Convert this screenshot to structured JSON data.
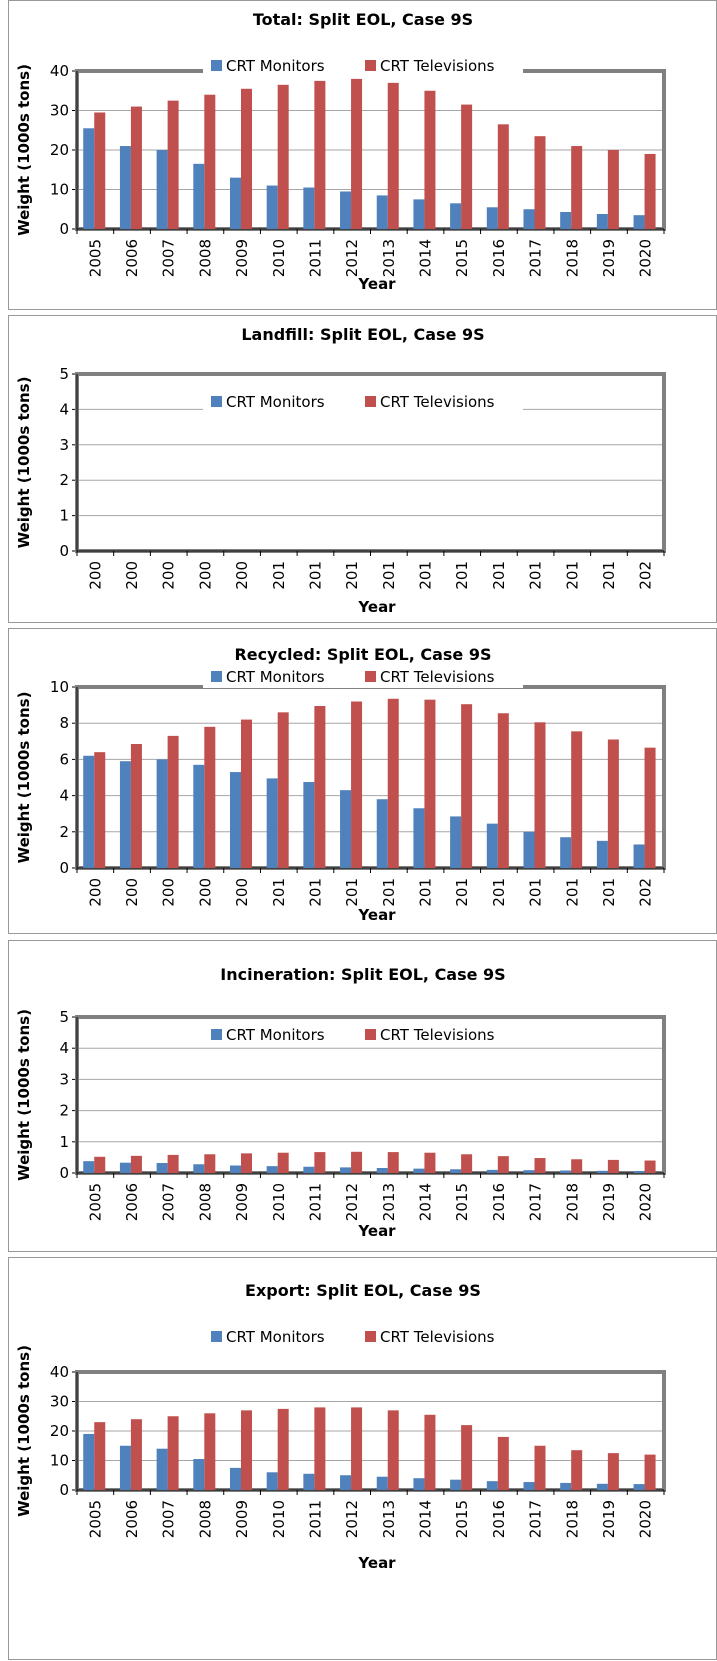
{
  "colors": {
    "monitors": "#4F81BD",
    "televisions": "#C0504D",
    "frame": "#808080",
    "grid": "#A6A6A6"
  },
  "chart_data": [
    {
      "type": "bar",
      "title": "Total:  Split EOL, Case 9S",
      "xlabel": "Year",
      "ylabel": "Weight (1000s tons)",
      "ylim": [
        0,
        40
      ],
      "yticks": [
        "0",
        "10",
        "20",
        "30",
        "40"
      ],
      "categories": [
        "2005",
        "2006",
        "2007",
        "2008",
        "2009",
        "2010",
        "2011",
        "2012",
        "2013",
        "2014",
        "2015",
        "2016",
        "2017",
        "2018",
        "2019",
        "2020"
      ],
      "series": [
        {
          "name": "CRT Monitors",
          "values": [
            25.5,
            21,
            20,
            16.5,
            13,
            11,
            10.5,
            9.5,
            8.5,
            7.5,
            6.5,
            5.5,
            5,
            4.3,
            3.8,
            3.5
          ]
        },
        {
          "name": "CRT Televisions",
          "values": [
            29.5,
            31,
            32.5,
            34,
            35.5,
            36.5,
            37.5,
            38,
            37,
            35,
            31.5,
            26.5,
            23.5,
            21,
            20,
            19
          ]
        }
      ],
      "legend_position": "top-center",
      "grid": true
    },
    {
      "type": "bar",
      "title": "Landfill:  Split EOL, Case 9S",
      "xlabel": "Year",
      "ylabel": "Weight (1000s tons)",
      "ylim": [
        0,
        5
      ],
      "yticks": [
        "0",
        "1",
        "2",
        "3",
        "4",
        "5"
      ],
      "categories": [
        "200",
        "200",
        "200",
        "200",
        "200",
        "201",
        "201",
        "201",
        "201",
        "201",
        "201",
        "201",
        "201",
        "201",
        "201",
        "202"
      ],
      "series": [
        {
          "name": "CRT Monitors",
          "values": [
            0,
            0,
            0,
            0,
            0,
            0,
            0,
            0,
            0,
            0,
            0,
            0,
            0,
            0,
            0,
            0
          ]
        },
        {
          "name": "CRT Televisions",
          "values": [
            0,
            0,
            0,
            0,
            0,
            0,
            0,
            0,
            0,
            0,
            0,
            0,
            0,
            0,
            0,
            0
          ]
        }
      ],
      "legend_position": "top-center",
      "grid": true
    },
    {
      "type": "bar",
      "title": "Recycled:  Split EOL, Case 9S",
      "xlabel": "Year",
      "ylabel": "Weight (1000s tons)",
      "ylim": [
        0,
        10
      ],
      "yticks": [
        "0",
        "2",
        "4",
        "6",
        "8",
        "10"
      ],
      "categories": [
        "200",
        "200",
        "200",
        "200",
        "200",
        "201",
        "201",
        "201",
        "201",
        "201",
        "201",
        "201",
        "201",
        "201",
        "201",
        "202"
      ],
      "series": [
        {
          "name": "CRT Monitors",
          "values": [
            6.2,
            5.9,
            6.0,
            5.7,
            5.3,
            4.95,
            4.75,
            4.3,
            3.8,
            3.3,
            2.85,
            2.45,
            2.0,
            1.7,
            1.5,
            1.3
          ]
        },
        {
          "name": "CRT Televisions",
          "values": [
            6.4,
            6.85,
            7.3,
            7.8,
            8.2,
            8.6,
            8.95,
            9.2,
            9.35,
            9.3,
            9.05,
            8.55,
            8.05,
            7.55,
            7.1,
            6.65
          ]
        }
      ],
      "legend_position": "top-center",
      "grid": true
    },
    {
      "type": "bar",
      "title": "Incineration:  Split EOL, Case 9S",
      "xlabel": "Year",
      "ylabel": "Weight (1000s tons)",
      "ylim": [
        0,
        5
      ],
      "yticks": [
        "0",
        "1",
        "2",
        "3",
        "4",
        "5"
      ],
      "categories": [
        "2005",
        "2006",
        "2007",
        "2008",
        "2009",
        "2010",
        "2011",
        "2012",
        "2013",
        "2014",
        "2015",
        "2016",
        "2017",
        "2018",
        "2019",
        "2020"
      ],
      "series": [
        {
          "name": "CRT Monitors",
          "values": [
            0.38,
            0.33,
            0.32,
            0.28,
            0.24,
            0.22,
            0.2,
            0.18,
            0.16,
            0.14,
            0.12,
            0.1,
            0.09,
            0.08,
            0.07,
            0.06
          ]
        },
        {
          "name": "CRT Televisions",
          "values": [
            0.52,
            0.55,
            0.58,
            0.6,
            0.63,
            0.65,
            0.67,
            0.68,
            0.67,
            0.65,
            0.6,
            0.54,
            0.48,
            0.44,
            0.42,
            0.4
          ]
        }
      ],
      "legend_position": "top-center",
      "grid": true
    },
    {
      "type": "bar",
      "title": "Export:  Split EOL, Case 9S",
      "xlabel": "Year",
      "ylabel": "Weight (1000s tons)",
      "ylim": [
        0,
        40
      ],
      "yticks": [
        "0",
        "10",
        "20",
        "30",
        "40"
      ],
      "categories": [
        "2005",
        "2006",
        "2007",
        "2008",
        "2009",
        "2010",
        "2011",
        "2012",
        "2013",
        "2014",
        "2015",
        "2016",
        "2017",
        "2018",
        "2019",
        "2020"
      ],
      "series": [
        {
          "name": "CRT Monitors",
          "values": [
            19,
            15,
            14,
            10.5,
            7.5,
            6,
            5.5,
            5,
            4.5,
            4,
            3.5,
            3,
            2.7,
            2.4,
            2.1,
            2
          ]
        },
        {
          "name": "CRT Televisions",
          "values": [
            23,
            24,
            25,
            26,
            27,
            27.5,
            28,
            28,
            27,
            25.5,
            22,
            18,
            15,
            13.5,
            12.5,
            12
          ]
        }
      ],
      "legend_position": "top-center",
      "grid": true
    }
  ]
}
